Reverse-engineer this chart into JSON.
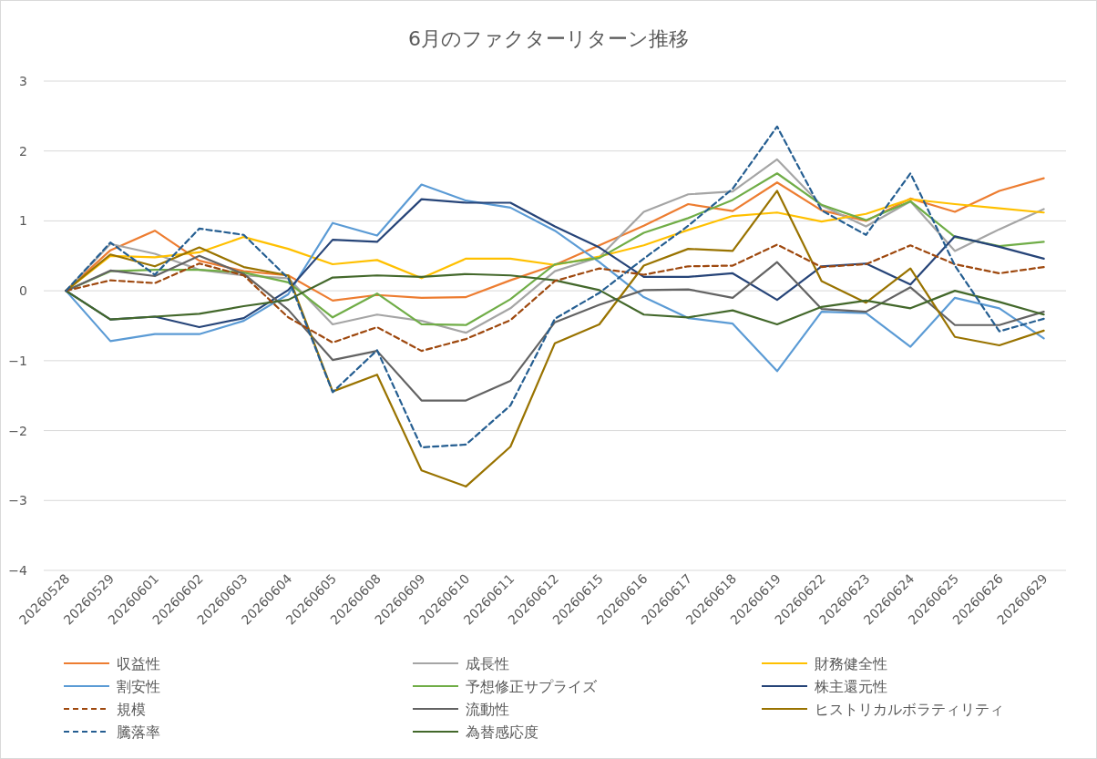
{
  "chart_data": {
    "type": "line",
    "title": "6月のファクターリターン推移",
    "categories": [
      "20260528",
      "20260529",
      "20260601",
      "20260602",
      "20260603",
      "20260604",
      "20260605",
      "20260608",
      "20260609",
      "20260610",
      "20260611",
      "20260612",
      "20260615",
      "20260616",
      "20260617",
      "20260618",
      "20260619",
      "20260622",
      "20260623",
      "20260624",
      "20260625",
      "20260626",
      "20260629"
    ],
    "ylim": [
      -4,
      3
    ],
    "yticks": [
      -4,
      -3,
      -2,
      -1,
      0,
      1,
      2,
      3
    ],
    "grid": "y",
    "legend": "bottom",
    "marker": "none",
    "series": [
      {
        "name": "収益性",
        "color": "#ed7d31",
        "line_style": "solid",
        "values": [
          0,
          0.58,
          0.86,
          0.43,
          0.28,
          0.22,
          -0.14,
          -0.06,
          -0.1,
          -0.09,
          0.15,
          0.37,
          0.65,
          0.93,
          1.24,
          1.14,
          1.55,
          1.15,
          1.0,
          1.32,
          1.13,
          1.43,
          1.61
        ]
      },
      {
        "name": "成長性",
        "color": "#a5a5a5",
        "line_style": "solid",
        "values": [
          0,
          0.67,
          0.53,
          0.3,
          0.22,
          0.18,
          -0.48,
          -0.34,
          -0.43,
          -0.6,
          -0.25,
          0.28,
          0.48,
          1.13,
          1.38,
          1.42,
          1.88,
          1.22,
          0.92,
          1.28,
          0.57,
          0.88,
          1.17
        ]
      },
      {
        "name": "財務健全性",
        "color": "#ffc000",
        "line_style": "solid",
        "values": [
          0,
          0.5,
          0.48,
          0.55,
          0.77,
          0.6,
          0.38,
          0.44,
          0.18,
          0.46,
          0.46,
          0.37,
          0.49,
          0.65,
          0.87,
          1.07,
          1.12,
          0.99,
          1.1,
          1.31,
          1.24,
          1.18,
          1.12
        ]
      },
      {
        "name": "割安性",
        "color": "#5b9bd5",
        "line_style": "solid",
        "values": [
          0,
          -0.72,
          -0.62,
          -0.62,
          -0.43,
          -0.05,
          0.97,
          0.79,
          1.52,
          1.29,
          1.19,
          0.86,
          0.41,
          -0.09,
          -0.39,
          -0.47,
          -1.15,
          -0.3,
          -0.32,
          -0.8,
          -0.1,
          -0.25,
          -0.68
        ]
      },
      {
        "name": "予想修正サプライズ",
        "color": "#70ad47",
        "line_style": "solid",
        "values": [
          0,
          0.28,
          0.3,
          0.3,
          0.26,
          0.12,
          -0.38,
          -0.04,
          -0.48,
          -0.49,
          -0.12,
          0.38,
          0.47,
          0.83,
          1.04,
          1.3,
          1.68,
          1.23,
          1.01,
          1.28,
          0.77,
          0.64,
          0.7
        ]
      },
      {
        "name": "株主還元性",
        "color": "#264478",
        "line_style": "solid",
        "values": [
          0,
          -0.41,
          -0.37,
          -0.52,
          -0.39,
          0.01,
          0.73,
          0.7,
          1.31,
          1.26,
          1.26,
          0.92,
          0.62,
          0.2,
          0.2,
          0.25,
          -0.13,
          0.35,
          0.39,
          0.09,
          0.78,
          0.63,
          0.46
        ]
      },
      {
        "name": "規模",
        "color": "#9e480e",
        "line_style": "dashed",
        "values": [
          0,
          0.15,
          0.11,
          0.39,
          0.22,
          -0.38,
          -0.74,
          -0.52,
          -0.86,
          -0.69,
          -0.42,
          0.14,
          0.32,
          0.23,
          0.35,
          0.36,
          0.66,
          0.34,
          0.38,
          0.65,
          0.38,
          0.25,
          0.34
        ]
      },
      {
        "name": "流動性",
        "color": "#636363",
        "line_style": "solid",
        "values": [
          0,
          0.29,
          0.21,
          0.5,
          0.24,
          -0.27,
          -0.99,
          -0.86,
          -1.57,
          -1.57,
          -1.29,
          -0.45,
          -0.2,
          0.01,
          0.02,
          -0.1,
          0.41,
          -0.26,
          -0.3,
          0.05,
          -0.49,
          -0.49,
          -0.3
        ]
      },
      {
        "name": "ヒストリカルボラティリティ",
        "color": "#997300",
        "line_style": "solid",
        "values": [
          0,
          0.52,
          0.35,
          0.62,
          0.34,
          0.22,
          -1.44,
          -1.2,
          -2.57,
          -2.8,
          -2.23,
          -0.75,
          -0.48,
          0.36,
          0.6,
          0.57,
          1.43,
          0.14,
          -0.17,
          0.32,
          -0.66,
          -0.78,
          -0.57
        ]
      },
      {
        "name": "騰落率",
        "color": "#255e91",
        "line_style": "dashed",
        "values": [
          0,
          0.69,
          0.23,
          0.89,
          0.8,
          0.18,
          -1.45,
          -0.85,
          -2.24,
          -2.2,
          -1.64,
          -0.4,
          -0.03,
          0.46,
          0.93,
          1.46,
          2.35,
          1.15,
          0.8,
          1.68,
          0.36,
          -0.58,
          -0.4
        ]
      },
      {
        "name": "為替感応度",
        "color": "#43682b",
        "line_style": "solid",
        "values": [
          0,
          -0.41,
          -0.37,
          -0.33,
          -0.22,
          -0.13,
          0.19,
          0.22,
          0.2,
          0.24,
          0.22,
          0.15,
          0.01,
          -0.34,
          -0.38,
          -0.28,
          -0.48,
          -0.23,
          -0.14,
          -0.25,
          0.0,
          -0.16,
          -0.34
        ]
      }
    ]
  }
}
